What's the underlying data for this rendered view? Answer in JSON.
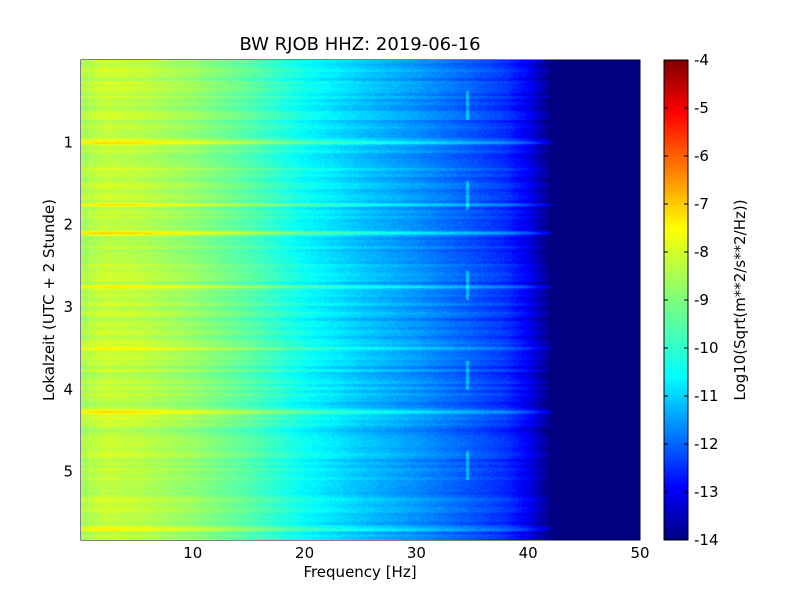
{
  "chart_data": {
    "type": "heatmap",
    "title": "BW RJOB HHZ: 2019-06-16",
    "xlabel": "Frequency [Hz]",
    "ylabel": "Lokalzeit (UTC + 2 Stunde)",
    "xlim": [
      0,
      50
    ],
    "ylim": [
      5.83,
      0
    ],
    "x_ticks": [
      10,
      20,
      30,
      40,
      50
    ],
    "y_ticks": [
      1,
      2,
      3,
      4,
      5
    ],
    "grid": true,
    "colormap": "jet",
    "colorbar": {
      "label": "Log10(Sqrt(m**2/s**2/Hz))",
      "range": [
        -14,
        -4
      ],
      "ticks": [
        -4,
        -5,
        -6,
        -7,
        -8,
        -9,
        -10,
        -11,
        -12,
        -13,
        -14
      ]
    },
    "profile": {
      "description_points_freq_hz": [
        0,
        2,
        5,
        10,
        15,
        20,
        25,
        30,
        35,
        38,
        40,
        42,
        45,
        50
      ],
      "log10_amplitude": [
        -8.6,
        -8.3,
        -8.4,
        -8.8,
        -9.4,
        -10.2,
        -10.8,
        -11.3,
        -11.9,
        -12.3,
        -12.9,
        -14,
        -14,
        -14
      ]
    },
    "bright_bands_hour": [
      1.0,
      1.75,
      2.1,
      2.75,
      3.5,
      4.27,
      5.7
    ],
    "tonal_line_freq_hz": 34.5
  }
}
